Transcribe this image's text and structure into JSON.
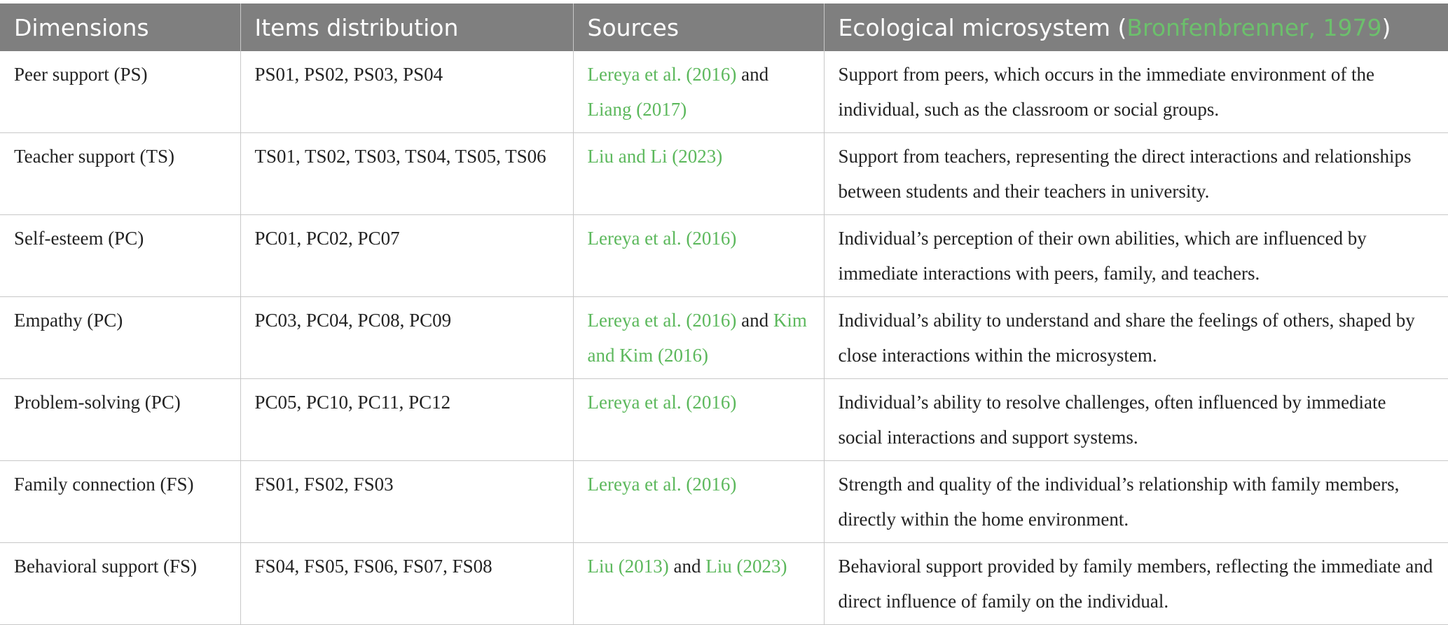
{
  "header": {
    "col1": "Dimensions",
    "col2": "Items distribution",
    "col3": "Sources",
    "col4_prefix": "Ecological microsystem (",
    "col4_ref": "Bronfenbrenner, 1979",
    "col4_suffix": ")"
  },
  "colors": {
    "header_bg": "#7f7f7f",
    "header_text": "#ffffff",
    "link": "#5cb85c",
    "border": "#c8c8c8"
  },
  "rows": [
    {
      "dimension": "Peer support (PS)",
      "items": "PS01, PS02, PS03, PS04",
      "sources": [
        {
          "text": "Lereya et al. (2016)",
          "link": true
        },
        {
          "text": " and ",
          "link": false
        },
        {
          "text": "Liang (2017)",
          "link": true
        }
      ],
      "microsystem": "Support from peers, which occurs in the immediate environment of the individual, such as the classroom or social groups."
    },
    {
      "dimension": "Teacher support (TS)",
      "items": "TS01, TS02, TS03, TS04, TS05, TS06",
      "sources": [
        {
          "text": "Liu and Li (2023)",
          "link": true
        }
      ],
      "microsystem": "Support from teachers, representing the direct interactions and relationships between students and their teachers in university."
    },
    {
      "dimension": "Self-esteem (PC)",
      "items": "PC01, PC02, PC07",
      "sources": [
        {
          "text": "Lereya et al. (2016)",
          "link": true
        }
      ],
      "microsystem": "Individual’s perception of their own abilities, which are influenced by immediate interactions with peers, family, and teachers."
    },
    {
      "dimension": "Empathy (PC)",
      "items": "PC03, PC04, PC08, PC09",
      "sources": [
        {
          "text": "Lereya et al. (2016)",
          "link": true
        },
        {
          "text": " and ",
          "link": false
        },
        {
          "text": "Kim and Kim (2016)",
          "link": true
        }
      ],
      "microsystem": "Individual’s ability to understand and share the feelings of others, shaped by close interactions within the microsystem."
    },
    {
      "dimension": "Problem-solving (PC)",
      "items": "PC05, PC10, PC11, PC12",
      "sources": [
        {
          "text": "Lereya et al. (2016)",
          "link": true
        }
      ],
      "microsystem": "Individual’s ability to resolve challenges, often influenced by immediate social interactions and support systems."
    },
    {
      "dimension": "Family connection (FS)",
      "items": "FS01, FS02, FS03",
      "sources": [
        {
          "text": "Lereya et al. (2016)",
          "link": true
        }
      ],
      "microsystem": "Strength and quality of the individual’s relationship with family members, directly within the home environment."
    },
    {
      "dimension": "Behavioral support (FS)",
      "items": "FS04, FS05, FS06, FS07, FS08",
      "sources": [
        {
          "text": "Liu (2013)",
          "link": true
        },
        {
          "text": " and ",
          "link": false
        },
        {
          "text": "Liu (2023)",
          "link": true
        }
      ],
      "microsystem": "Behavioral support provided by family members, reflecting the immediate and direct influence of family on the individual."
    }
  ]
}
